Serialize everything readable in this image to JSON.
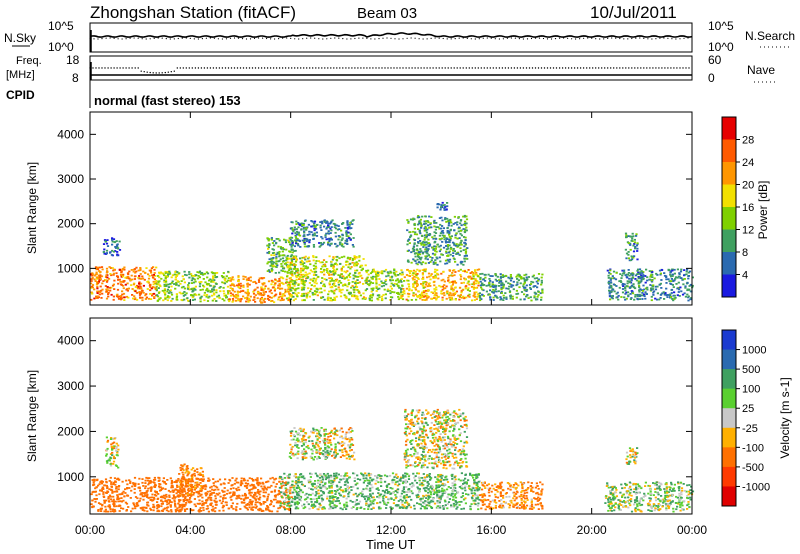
{
  "header": {
    "title": "Zhongshan Station (fitACF)",
    "beam": "Beam 03",
    "date": "10/Jul/2011"
  },
  "strip_nsky": {
    "left_label": "N.Sky",
    "right_label": "N.Search",
    "tick_top": "10^5",
    "tick_bottom": "10^0"
  },
  "strip_freq": {
    "left_label_1": "Freq.",
    "left_label_2": "[MHz]",
    "left_tick_top": "18",
    "left_tick_bottom": "8",
    "right_tick_top": "60",
    "right_tick_bottom": "0",
    "right_label": "Nave"
  },
  "strip_cpid": {
    "left_label": "CPID",
    "mode_text": "normal (fast stereo) 153"
  },
  "x_axis": {
    "label": "Time UT",
    "ticks": [
      "00:00",
      "04:00",
      "08:00",
      "12:00",
      "16:00",
      "20:00",
      "00:00"
    ]
  },
  "panel_power": {
    "y_label": "Slant Range [km]",
    "y_ticks": [
      "1000",
      "2000",
      "3000",
      "4000"
    ],
    "colorbar_label": "Power [dB]",
    "colorbar_ticks": [
      "28",
      "24",
      "20",
      "16",
      "12",
      "8",
      "4"
    ],
    "colors": [
      "#e60000",
      "#ff5a00",
      "#ff9600",
      "#f2e000",
      "#7fd000",
      "#3fa060",
      "#2a6ab0",
      "#1a1ae0"
    ]
  },
  "panel_velocity": {
    "y_label": "Slant Range [km]",
    "y_ticks": [
      "1000",
      "2000",
      "3000",
      "4000"
    ],
    "colorbar_label": "Velocity [m s-1]",
    "colorbar_ticks": [
      "1000",
      "500",
      "100",
      "25",
      "-25",
      "-100",
      "-500",
      "-1000"
    ],
    "colors": [
      "#1a3ad0",
      "#2a6ab0",
      "#3fa060",
      "#5ad030",
      "#c8c8c8",
      "#ffb000",
      "#ff7000",
      "#ff3a00",
      "#e00000"
    ]
  },
  "chart_data": [
    {
      "type": "heatmap",
      "title": "Power",
      "x_range_hours": [
        0,
        24
      ],
      "y_range_km": [
        180,
        4500
      ],
      "blobs": [
        {
          "t0": 0.0,
          "t1": 2.6,
          "r0": 300,
          "r1": 1050,
          "level": 24
        },
        {
          "t0": 0.5,
          "t1": 1.2,
          "r0": 1300,
          "r1": 1700,
          "level": 6
        },
        {
          "t0": 2.6,
          "t1": 5.5,
          "r0": 280,
          "r1": 950,
          "level": 14
        },
        {
          "t0": 5.5,
          "t1": 8.0,
          "r0": 250,
          "r1": 850,
          "level": 22
        },
        {
          "t0": 7.0,
          "t1": 8.2,
          "r0": 900,
          "r1": 1700,
          "level": 12
        },
        {
          "t0": 7.8,
          "t1": 11.0,
          "r0": 300,
          "r1": 1300,
          "level": 16
        },
        {
          "t0": 7.9,
          "t1": 10.5,
          "r0": 1500,
          "r1": 2100,
          "level": 8
        },
        {
          "t0": 11.0,
          "t1": 12.5,
          "r0": 300,
          "r1": 1000,
          "level": 14
        },
        {
          "t0": 12.4,
          "t1": 15.5,
          "r0": 300,
          "r1": 1000,
          "level": 20
        },
        {
          "t0": 12.6,
          "t1": 15.0,
          "r0": 1100,
          "r1": 2200,
          "level": 10
        },
        {
          "t0": 13.8,
          "t1": 14.2,
          "r0": 2300,
          "r1": 2500,
          "level": 6
        },
        {
          "t0": 15.5,
          "t1": 18.0,
          "r0": 300,
          "r1": 900,
          "level": 10
        },
        {
          "t0": 20.6,
          "t1": 24.0,
          "r0": 300,
          "r1": 1000,
          "level": 8
        },
        {
          "t0": 21.3,
          "t1": 21.8,
          "r0": 1200,
          "r1": 1800,
          "level": 8
        }
      ]
    },
    {
      "type": "heatmap",
      "title": "Velocity",
      "x_range_hours": [
        0,
        24
      ],
      "y_range_km": [
        180,
        4500
      ],
      "blobs": [
        {
          "t0": 0.0,
          "t1": 8.0,
          "r0": 250,
          "r1": 1000,
          "velocity": -300
        },
        {
          "t0": 0.6,
          "t1": 1.1,
          "r0": 1200,
          "r1": 1900,
          "velocity": 0
        },
        {
          "t0": 3.5,
          "t1": 4.5,
          "r0": 600,
          "r1": 1300,
          "velocity": -200
        },
        {
          "t0": 7.5,
          "t1": 11.5,
          "r0": 300,
          "r1": 1100,
          "velocity": 100
        },
        {
          "t0": 7.9,
          "t1": 10.5,
          "r0": 1400,
          "r1": 2100,
          "velocity": 0
        },
        {
          "t0": 11.5,
          "t1": 15.5,
          "r0": 300,
          "r1": 1100,
          "velocity": 100
        },
        {
          "t0": 12.5,
          "t1": 15.0,
          "r0": 1200,
          "r1": 2500,
          "velocity": 0
        },
        {
          "t0": 15.5,
          "t1": 18.0,
          "r0": 300,
          "r1": 900,
          "velocity": -150
        },
        {
          "t0": 20.5,
          "t1": 24.0,
          "r0": 250,
          "r1": 900,
          "velocity": 50
        },
        {
          "t0": 21.3,
          "t1": 21.8,
          "r0": 1300,
          "r1": 1700,
          "velocity": 0
        }
      ]
    }
  ]
}
